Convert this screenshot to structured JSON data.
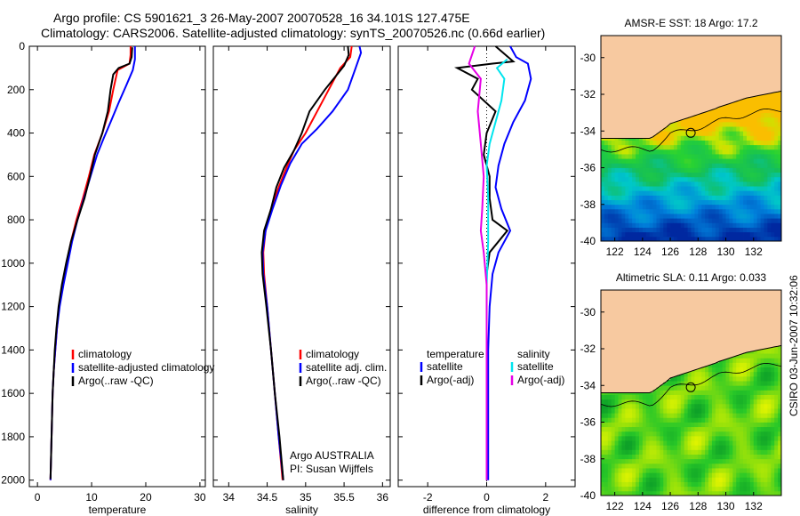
{
  "title": {
    "line1": "Argo profile: CS 5901621_3 26-May-2007 20070528_16 34.101S 127.475E",
    "line2": "Climatology: CARS2006. Satellite-adjusted climatology: synTS_20070526.nc (0.66d earlier)"
  },
  "stamp": "CSIRO 03-Jun-2007 10:32:06",
  "colors": {
    "climatology": "#ff0000",
    "satellite": "#0000ff",
    "argo": "#000000",
    "sat_diff_sal": "#00e5ee",
    "argo_diff_sal": "#e600e6",
    "land": "#f7c9a0"
  },
  "chart_data": [
    {
      "type": "line",
      "xlabel": "temperature",
      "ylabel": "",
      "xlim": [
        -1.5,
        31
      ],
      "ylim": [
        2030,
        0
      ],
      "xticks": [
        0,
        10,
        20,
        30
      ],
      "yticks": [
        0,
        200,
        400,
        600,
        800,
        1000,
        1200,
        1400,
        1600,
        1800,
        2000
      ],
      "legend": [
        "climatology",
        "satellite-adjusted climatology",
        "Argo(..raw -QC)"
      ],
      "series": [
        {
          "name": "climatology",
          "color": "#ff0000",
          "points": [
            [
              17.2,
              0
            ],
            [
              17.2,
              40
            ],
            [
              17.0,
              80
            ],
            [
              14.8,
              110
            ],
            [
              14.0,
              200
            ],
            [
              13.2,
              300
            ],
            [
              12.0,
              400
            ],
            [
              10.5,
              500
            ],
            [
              9.5,
              600
            ],
            [
              8.4,
              700
            ],
            [
              7.2,
              800
            ],
            [
              6.2,
              900
            ],
            [
              5.4,
              1000
            ],
            [
              4.6,
              1100
            ],
            [
              4.0,
              1200
            ],
            [
              3.6,
              1300
            ],
            [
              3.3,
              1400
            ],
            [
              3.0,
              1500
            ],
            [
              2.8,
              1600
            ],
            [
              2.7,
              1700
            ],
            [
              2.6,
              1800
            ],
            [
              2.5,
              1900
            ],
            [
              2.4,
              2000
            ]
          ]
        },
        {
          "name": "satellite-adjusted climatology",
          "color": "#0000ff",
          "points": [
            [
              18.0,
              0
            ],
            [
              18.0,
              60
            ],
            [
              17.6,
              110
            ],
            [
              16.4,
              180
            ],
            [
              15.0,
              260
            ],
            [
              13.5,
              350
            ],
            [
              12.3,
              420
            ],
            [
              11.0,
              500
            ],
            [
              9.8,
              600
            ],
            [
              8.6,
              700
            ],
            [
              7.4,
              800
            ],
            [
              6.4,
              900
            ],
            [
              5.6,
              1000
            ],
            [
              4.8,
              1100
            ],
            [
              4.1,
              1200
            ],
            [
              3.6,
              1300
            ],
            [
              3.3,
              1400
            ],
            [
              3.0,
              1500
            ],
            [
              2.8,
              1600
            ],
            [
              2.7,
              1700
            ],
            [
              2.6,
              1800
            ],
            [
              2.5,
              1900
            ],
            [
              2.4,
              2000
            ]
          ]
        },
        {
          "name": "Argo(..raw -QC)",
          "color": "#000000",
          "points": [
            [
              17.5,
              5
            ],
            [
              17.4,
              50
            ],
            [
              17.0,
              80
            ],
            [
              15.0,
              100
            ],
            [
              14.0,
              130
            ],
            [
              13.5,
              200
            ],
            [
              13.0,
              300
            ],
            [
              12.0,
              400
            ],
            [
              10.6,
              500
            ],
            [
              9.7,
              600
            ],
            [
              8.7,
              700
            ],
            [
              7.4,
              800
            ],
            [
              6.2,
              900
            ],
            [
              5.3,
              1000
            ],
            [
              4.5,
              1100
            ],
            [
              3.9,
              1200
            ],
            [
              3.5,
              1300
            ],
            [
              3.2,
              1400
            ],
            [
              3.0,
              1500
            ],
            [
              2.8,
              1600
            ],
            [
              2.7,
              1700
            ],
            [
              2.6,
              1800
            ],
            [
              2.5,
              1900
            ],
            [
              2.4,
              1995
            ]
          ]
        }
      ],
      "annotations": []
    },
    {
      "type": "line",
      "xlabel": "salinity",
      "ylabel": "",
      "xlim": [
        33.8,
        36.1
      ],
      "ylim": [
        2030,
        0
      ],
      "xticks": [
        34,
        34.5,
        35,
        35.5,
        36
      ],
      "yticks": [],
      "legend": [
        "climatology",
        "satellite adj. clim.",
        "Argo(..raw -QC)"
      ],
      "series": [
        {
          "name": "climatology",
          "color": "#ff0000",
          "points": [
            [
              35.6,
              0
            ],
            [
              35.58,
              50
            ],
            [
              35.45,
              100
            ],
            [
              35.3,
              200
            ],
            [
              35.15,
              300
            ],
            [
              35.0,
              400
            ],
            [
              34.85,
              480
            ],
            [
              34.75,
              560
            ],
            [
              34.65,
              650
            ],
            [
              34.55,
              750
            ],
            [
              34.48,
              850
            ],
            [
              34.45,
              950
            ],
            [
              34.46,
              1050
            ],
            [
              34.5,
              1200
            ],
            [
              34.55,
              1400
            ],
            [
              34.6,
              1600
            ],
            [
              34.65,
              1800
            ],
            [
              34.7,
              2000
            ]
          ]
        },
        {
          "name": "satellite adj. clim.",
          "color": "#0000ff",
          "points": [
            [
              35.7,
              0
            ],
            [
              35.72,
              30
            ],
            [
              35.65,
              100
            ],
            [
              35.55,
              200
            ],
            [
              35.35,
              300
            ],
            [
              35.15,
              380
            ],
            [
              34.95,
              450
            ],
            [
              34.8,
              540
            ],
            [
              34.68,
              640
            ],
            [
              34.57,
              750
            ],
            [
              34.48,
              850
            ],
            [
              34.44,
              950
            ],
            [
              34.45,
              1050
            ],
            [
              34.5,
              1200
            ],
            [
              34.55,
              1400
            ],
            [
              34.6,
              1600
            ],
            [
              34.65,
              1800
            ],
            [
              34.71,
              2000
            ]
          ]
        },
        {
          "name": "Argo(..raw -QC)",
          "color": "#000000",
          "points": [
            [
              35.55,
              0
            ],
            [
              35.56,
              40
            ],
            [
              35.5,
              90
            ],
            [
              35.25,
              200
            ],
            [
              35.05,
              300
            ],
            [
              34.95,
              400
            ],
            [
              34.85,
              480
            ],
            [
              34.72,
              560
            ],
            [
              34.62,
              650
            ],
            [
              34.55,
              750
            ],
            [
              34.46,
              850
            ],
            [
              34.43,
              950
            ],
            [
              34.44,
              1050
            ],
            [
              34.49,
              1200
            ],
            [
              34.55,
              1400
            ],
            [
              34.6,
              1600
            ],
            [
              34.66,
              1800
            ],
            [
              34.71,
              2000
            ]
          ]
        }
      ],
      "annotations": [
        "Argo AUSTRALIA",
        "PI: Susan Wijffels"
      ]
    },
    {
      "type": "line",
      "xlabel": "difference from climatology",
      "ylabel": "",
      "xlim": [
        -3,
        3
      ],
      "ylim": [
        2030,
        0
      ],
      "xticks": [
        -2,
        0,
        2
      ],
      "yticks": [],
      "legend_groups": [
        {
          "heading": "temperature",
          "entries": [
            "satellite",
            "Argo(-adj)"
          ]
        },
        {
          "heading": "salinity",
          "entries": [
            "satellite",
            "Argo(-adj)"
          ]
        }
      ],
      "series": [
        {
          "name": "temperature satellite",
          "color": "#0000ff",
          "points": [
            [
              0.8,
              0
            ],
            [
              1.0,
              50
            ],
            [
              1.4,
              80
            ],
            [
              1.5,
              150
            ],
            [
              1.3,
              250
            ],
            [
              0.9,
              350
            ],
            [
              0.6,
              450
            ],
            [
              0.4,
              550
            ],
            [
              0.3,
              650
            ],
            [
              0.5,
              750
            ],
            [
              0.8,
              850
            ],
            [
              0.4,
              950
            ],
            [
              0.2,
              1050
            ],
            [
              0.1,
              1200
            ],
            [
              0.05,
              1400
            ],
            [
              0.05,
              1600
            ],
            [
              0.05,
              1800
            ],
            [
              0.05,
              2000
            ]
          ]
        },
        {
          "name": "temperature Argo(-adj)",
          "color": "#000000",
          "points": [
            [
              0.3,
              0
            ],
            [
              0.9,
              70
            ],
            [
              0.2,
              80
            ],
            [
              -1.0,
              100
            ],
            [
              -0.3,
              150
            ],
            [
              -0.5,
              200
            ],
            [
              0.3,
              300
            ],
            [
              0.0,
              400
            ],
            [
              -0.1,
              500
            ],
            [
              0.1,
              600
            ],
            [
              0.1,
              700
            ],
            [
              0.2,
              800
            ],
            [
              0.7,
              850
            ],
            [
              0.1,
              950
            ],
            [
              0.0,
              1050
            ],
            [
              0.0,
              1200
            ],
            [
              0.0,
              1400
            ],
            [
              0.0,
              1600
            ],
            [
              0.0,
              1800
            ],
            [
              0.0,
              2000
            ]
          ]
        },
        {
          "name": "salinity satellite",
          "color": "#00e5ee",
          "points": [
            [
              0.7,
              60
            ],
            [
              0.35,
              100
            ],
            [
              0.6,
              150
            ],
            [
              0.5,
              250
            ],
            [
              0.3,
              350
            ],
            [
              0.1,
              450
            ],
            [
              0.0,
              550
            ],
            [
              0.05,
              700
            ],
            [
              0.05,
              900
            ],
            [
              0.0,
              1100
            ],
            [
              0.0,
              1400
            ],
            [
              0.0,
              1700
            ],
            [
              0.0,
              2000
            ]
          ]
        },
        {
          "name": "salinity Argo(-adj)",
          "color": "#e600e6",
          "points": [
            [
              -0.4,
              0
            ],
            [
              -0.6,
              80
            ],
            [
              -0.2,
              150
            ],
            [
              -0.3,
              300
            ],
            [
              -0.2,
              450
            ],
            [
              -0.1,
              600
            ],
            [
              -0.15,
              750
            ],
            [
              -0.2,
              850
            ],
            [
              -0.1,
              950
            ],
            [
              0.0,
              1100
            ],
            [
              0.0,
              1400
            ],
            [
              0.0,
              1700
            ],
            [
              0.0,
              2000
            ]
          ]
        }
      ],
      "annotations": []
    },
    {
      "type": "heatmap",
      "title": "AMSR-E SST: 18 Argo: 17.2",
      "xlim": [
        121,
        134
      ],
      "ylim": [
        -40,
        -28.8
      ],
      "xticks": [
        122,
        124,
        126,
        128,
        130,
        132
      ],
      "yticks": [
        -30,
        -32,
        -34,
        -36,
        -38,
        -40
      ],
      "marker": [
        127.475,
        -34.101
      ]
    },
    {
      "type": "heatmap",
      "title": "Altimetric SLA: 0.11 Argo: 0.033",
      "xlim": [
        121,
        134
      ],
      "ylim": [
        -40,
        -28.8
      ],
      "xticks": [
        122,
        124,
        126,
        128,
        130,
        132
      ],
      "yticks": [
        -30,
        -32,
        -34,
        -36,
        -38,
        -40
      ],
      "marker": [
        127.475,
        -34.101
      ]
    }
  ]
}
